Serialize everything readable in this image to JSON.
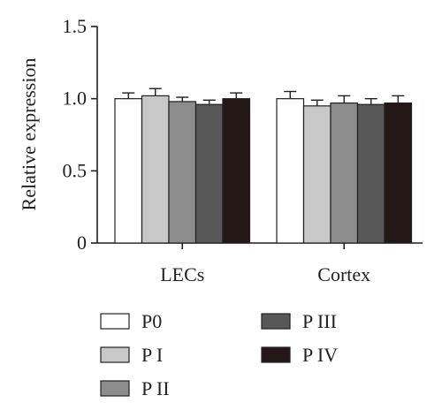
{
  "chart_data": {
    "type": "bar",
    "title": "",
    "xlabel": "",
    "ylabel": "Relative expression",
    "ylim": [
      0,
      1.5
    ],
    "yticks": [
      "0",
      "0.5",
      "1.0",
      "1.5"
    ],
    "grid": false,
    "legend_position": "bottom",
    "categories": [
      "LECs",
      "Cortex"
    ],
    "series": [
      {
        "name": "P0",
        "color": "#ffffff",
        "values": [
          1.0,
          1.0
        ],
        "errors": [
          0.04,
          0.05
        ]
      },
      {
        "name": "P I",
        "color": "#c8c8c8",
        "values": [
          1.02,
          0.95
        ],
        "errors": [
          0.05,
          0.04
        ]
      },
      {
        "name": "P II",
        "color": "#8c8c8c",
        "values": [
          0.98,
          0.97
        ],
        "errors": [
          0.03,
          0.05
        ]
      },
      {
        "name": "P III",
        "color": "#585858",
        "values": [
          0.96,
          0.96
        ],
        "errors": [
          0.03,
          0.04
        ]
      },
      {
        "name": "P IV",
        "color": "#231815",
        "values": [
          1.0,
          0.97
        ],
        "errors": [
          0.04,
          0.05
        ]
      }
    ]
  }
}
